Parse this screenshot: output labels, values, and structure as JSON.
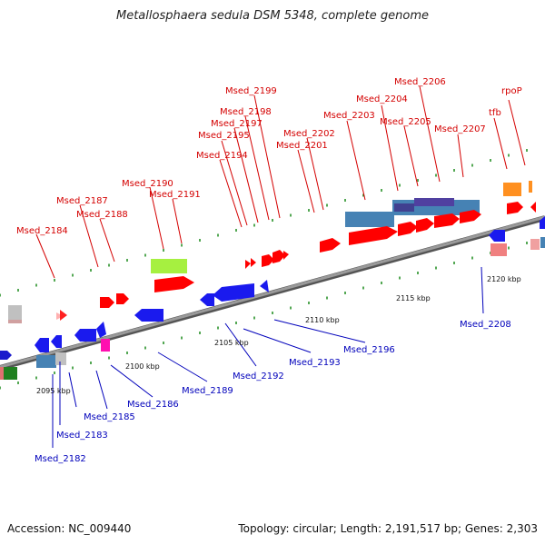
{
  "title": "Metallosphaera sedula DSM 5348, complete genome",
  "footer": {
    "accession": "Accession: NC_009440",
    "summary": "Topology: circular; Length: 2,191,517 bp; Genes: 2,303"
  },
  "colors": {
    "top_labels": "#d40000",
    "bottom_labels": "#0000bb",
    "backbone": "#808080",
    "ticks": "#1a8a1a",
    "forward_gene": "#ff0000",
    "reverse_gene": "#0000ff",
    "rna": "#4682b4"
  },
  "scale_labels": [
    "2095 kbp",
    "2100 kbp",
    "2105 kbp",
    "2110 kbp",
    "2115 kbp",
    "2120 kbp"
  ],
  "top_labels": [
    "Msed_2184",
    "Msed_2187",
    "Msed_2188",
    "Msed_2190",
    "Msed_2191",
    "Msed_2194",
    "Msed_2195",
    "Msed_2197",
    "Msed_2198",
    "Msed_2199",
    "Msed_2201",
    "Msed_2202",
    "Msed_2203",
    "Msed_2204",
    "Msed_2205",
    "Msed_2206",
    "Msed_2207",
    "tfb",
    "rpoP"
  ],
  "bottom_labels": [
    "Msed_2182",
    "Msed_2183",
    "Msed_2185",
    "Msed_2186",
    "Msed_2189",
    "Msed_2192",
    "Msed_2193",
    "Msed_2196",
    "Msed_2208"
  ]
}
